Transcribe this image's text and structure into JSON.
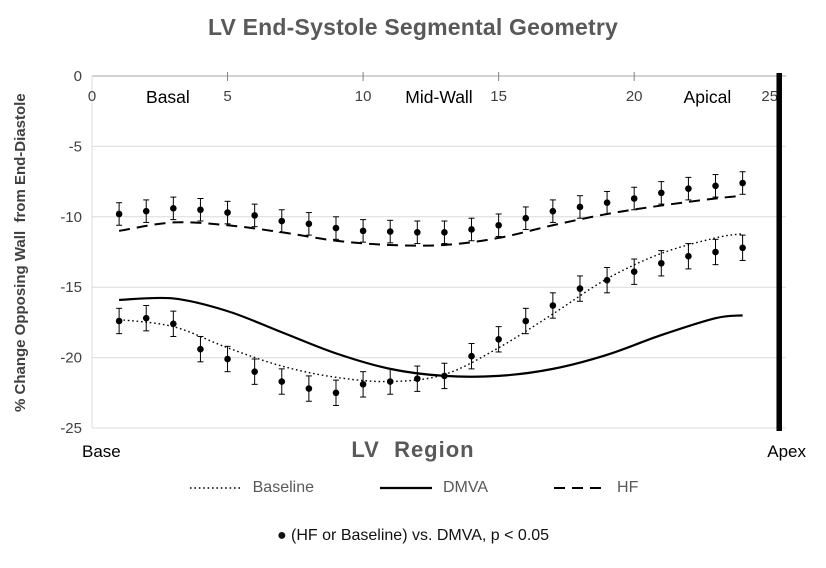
{
  "chart_data": {
    "type": "line",
    "title": "LV End-Systole Segmental Geometry",
    "xlabel": "LV  Region",
    "ylabel": "% Change Opposing Wall  from End-Diastole",
    "xlim": [
      0,
      25.6
    ],
    "ylim": [
      -25,
      0
    ],
    "x_ticks": [
      0,
      5,
      10,
      15,
      20,
      25
    ],
    "y_ticks": [
      0,
      -5,
      -10,
      -15,
      -20,
      -25
    ],
    "region_labels": [
      {
        "text": "Basal",
        "x": 2.8
      },
      {
        "text": "Mid-Wall",
        "x": 12.8
      },
      {
        "text": "Apical",
        "x": 22.7
      }
    ],
    "axis_end_labels": {
      "left": "Base",
      "right": "Apex"
    },
    "apex_boundary_x": 25.35,
    "series": [
      {
        "name": "Baseline",
        "style": "dotted",
        "x": [
          1,
          3,
          5,
          7,
          9,
          11,
          13,
          15,
          17,
          19,
          21,
          23,
          24
        ],
        "y": [
          -17.3,
          -17.8,
          -19.3,
          -20.6,
          -21.4,
          -21.7,
          -21.2,
          -19.3,
          -16.9,
          -14.4,
          -12.6,
          -11.5,
          -11.2
        ]
      },
      {
        "name": "DMVA",
        "style": "solid",
        "x": [
          1,
          3,
          5,
          7,
          9,
          11,
          13,
          15,
          17,
          19,
          21,
          23,
          24
        ],
        "y": [
          -15.9,
          -15.8,
          -16.7,
          -18.2,
          -19.7,
          -20.8,
          -21.3,
          -21.3,
          -20.8,
          -19.8,
          -18.4,
          -17.2,
          -17.0
        ]
      },
      {
        "name": "HF",
        "style": "dashed",
        "x": [
          1,
          3,
          5,
          7,
          9,
          11,
          13,
          15,
          17,
          19,
          21,
          23,
          24
        ],
        "y": [
          -11.0,
          -10.4,
          -10.6,
          -11.1,
          -11.7,
          -12.0,
          -12.0,
          -11.5,
          -10.6,
          -9.8,
          -9.2,
          -8.7,
          -8.5
        ]
      }
    ],
    "marker_series": [
      {
        "series": "HF",
        "err": 0.8,
        "x": [
          1,
          2,
          3,
          4,
          5,
          6,
          7,
          8,
          9,
          10,
          11,
          12,
          13,
          14,
          15,
          16,
          17,
          18,
          19,
          20,
          21,
          22,
          23,
          24
        ],
        "y": [
          -9.8,
          -9.6,
          -9.4,
          -9.5,
          -9.7,
          -9.9,
          -10.3,
          -10.5,
          -10.8,
          -11.0,
          -11.05,
          -11.1,
          -11.1,
          -10.9,
          -10.6,
          -10.1,
          -9.6,
          -9.3,
          -9.0,
          -8.7,
          -8.3,
          -8.0,
          -7.8,
          -7.6
        ]
      },
      {
        "series": "Baseline",
        "err": 0.9,
        "x": [
          1,
          2,
          3,
          4,
          5,
          6,
          7,
          8,
          9,
          10,
          11,
          12,
          13,
          14,
          15,
          16,
          17,
          18,
          19,
          20,
          21,
          22,
          23,
          24
        ],
        "y": [
          -17.4,
          -17.2,
          -17.6,
          -19.4,
          -20.1,
          -21.0,
          -21.7,
          -22.2,
          -22.5,
          -21.9,
          -21.7,
          -21.5,
          -21.3,
          -19.9,
          -18.7,
          -17.4,
          -16.3,
          -15.1,
          -14.5,
          -13.9,
          -13.3,
          -12.8,
          -12.5,
          -12.2
        ]
      }
    ],
    "legend": [
      {
        "label": "Baseline",
        "style": "dotted"
      },
      {
        "label": "DMVA",
        "style": "solid"
      },
      {
        "label": "HF",
        "style": "dashed"
      }
    ],
    "footnote": "● (HF or Baseline) vs. DMVA, p < 0.05",
    "colors": {
      "line": "#000000",
      "grid": "#dcdcdc",
      "axis": "#a6a6a6",
      "title": "#595959",
      "tick": "#404040"
    }
  }
}
